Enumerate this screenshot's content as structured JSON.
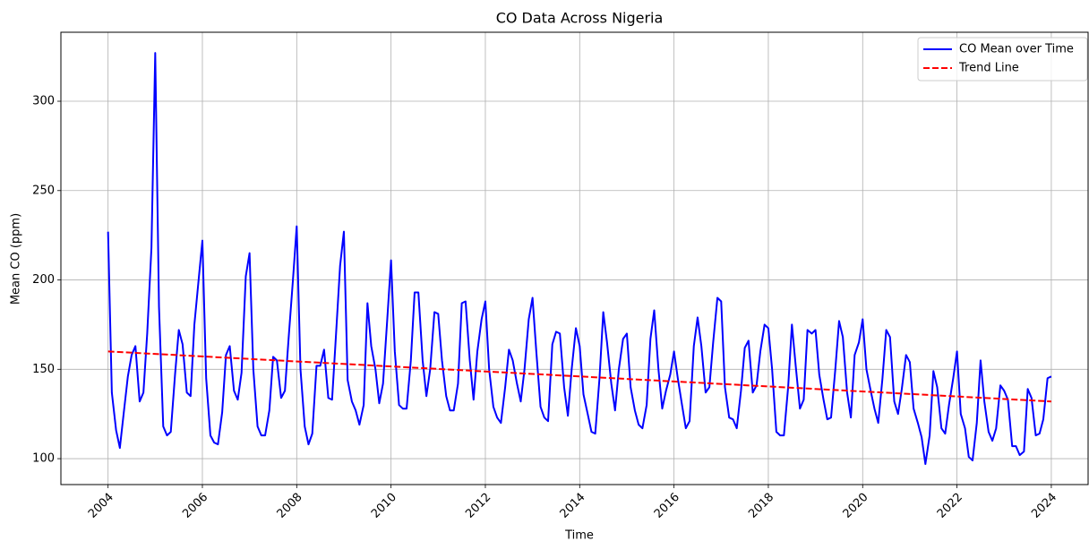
{
  "chart_data": {
    "type": "line",
    "title": "CO Data Across Nigeria",
    "x_label": "Time",
    "y_label": "Mean CO (ppm)",
    "xlim": [
      2003,
      2024.78
    ],
    "ylim": [
      85.5,
      338.6
    ],
    "xticks": [
      2004,
      2006,
      2008,
      2010,
      2012,
      2014,
      2016,
      2018,
      2020,
      2022,
      2024
    ],
    "yticks": [
      100,
      150,
      200,
      250,
      300
    ],
    "grid": true,
    "legend": "upper right",
    "series": [
      {
        "name": "CO Mean over Time",
        "color": "#0000ff",
        "linestyle": "solid",
        "x": [
          2004.0,
          2004.08,
          2004.17,
          2004.25,
          2004.33,
          2004.42,
          2004.5,
          2004.58,
          2004.67,
          2004.75,
          2004.83,
          2004.92,
          2005.0,
          2005.08,
          2005.17,
          2005.25,
          2005.33,
          2005.42,
          2005.5,
          2005.58,
          2005.67,
          2005.75,
          2005.83,
          2005.92,
          2006.0,
          2006.08,
          2006.17,
          2006.25,
          2006.33,
          2006.42,
          2006.5,
          2006.58,
          2006.67,
          2006.75,
          2006.83,
          2006.92,
          2007.0,
          2007.08,
          2007.17,
          2007.25,
          2007.33,
          2007.42,
          2007.5,
          2007.58,
          2007.67,
          2007.75,
          2007.83,
          2007.92,
          2008.0,
          2008.08,
          2008.17,
          2008.25,
          2008.33,
          2008.42,
          2008.5,
          2008.58,
          2008.67,
          2008.75,
          2008.83,
          2008.92,
          2009.0,
          2009.08,
          2009.17,
          2009.25,
          2009.33,
          2009.42,
          2009.5,
          2009.58,
          2009.67,
          2009.75,
          2009.83,
          2009.92,
          2010.0,
          2010.08,
          2010.17,
          2010.25,
          2010.33,
          2010.42,
          2010.5,
          2010.58,
          2010.67,
          2010.75,
          2010.83,
          2010.92,
          2011.0,
          2011.08,
          2011.17,
          2011.25,
          2011.33,
          2011.42,
          2011.5,
          2011.58,
          2011.67,
          2011.75,
          2011.83,
          2011.92,
          2012.0,
          2012.08,
          2012.17,
          2012.25,
          2012.33,
          2012.42,
          2012.5,
          2012.58,
          2012.67,
          2012.75,
          2012.83,
          2012.92,
          2013.0,
          2013.08,
          2013.17,
          2013.25,
          2013.33,
          2013.42,
          2013.5,
          2013.58,
          2013.67,
          2013.75,
          2013.83,
          2013.92,
          2014.0,
          2014.08,
          2014.17,
          2014.25,
          2014.33,
          2014.42,
          2014.5,
          2014.58,
          2014.67,
          2014.75,
          2014.83,
          2014.92,
          2015.0,
          2015.08,
          2015.17,
          2015.25,
          2015.33,
          2015.42,
          2015.5,
          2015.58,
          2015.67,
          2015.75,
          2015.83,
          2015.92,
          2016.0,
          2016.08,
          2016.17,
          2016.25,
          2016.33,
          2016.42,
          2016.5,
          2016.58,
          2016.67,
          2016.75,
          2016.83,
          2016.92,
          2017.0,
          2017.08,
          2017.17,
          2017.25,
          2017.33,
          2017.42,
          2017.5,
          2017.58,
          2017.67,
          2017.75,
          2017.83,
          2017.92,
          2018.0,
          2018.08,
          2018.17,
          2018.25,
          2018.33,
          2018.42,
          2018.5,
          2018.58,
          2018.67,
          2018.75,
          2018.83,
          2018.92,
          2019.0,
          2019.08,
          2019.17,
          2019.25,
          2019.33,
          2019.42,
          2019.5,
          2019.58,
          2019.67,
          2019.75,
          2019.83,
          2019.92,
          2020.0,
          2020.08,
          2020.17,
          2020.25,
          2020.33,
          2020.42,
          2020.5,
          2020.58,
          2020.67,
          2020.75,
          2020.83,
          2020.92,
          2021.0,
          2021.08,
          2021.17,
          2021.25,
          2021.33,
          2021.42,
          2021.5,
          2021.58,
          2021.67,
          2021.75,
          2021.83,
          2021.92,
          2022.0,
          2022.08,
          2022.17,
          2022.25,
          2022.33,
          2022.42,
          2022.5,
          2022.58,
          2022.67,
          2022.75,
          2022.83,
          2022.92,
          2023.0,
          2023.08,
          2023.17,
          2023.25,
          2023.33,
          2023.42,
          2023.5,
          2023.58,
          2023.67,
          2023.75,
          2023.83,
          2023.92,
          2024.0
        ],
        "values": [
          227,
          137,
          116,
          106,
          125,
          146,
          158,
          163,
          132,
          137,
          170,
          218,
          327,
          185,
          118,
          113,
          115,
          147,
          172,
          164,
          137,
          135,
          175,
          200,
          222,
          145,
          113,
          109,
          108,
          126,
          158,
          163,
          138,
          133,
          148,
          202,
          215,
          150,
          118,
          113,
          113,
          127,
          157,
          155,
          134,
          138,
          168,
          200,
          230,
          150,
          118,
          108,
          114,
          152,
          152,
          161,
          134,
          133,
          168,
          208,
          227,
          144,
          132,
          127,
          119,
          130,
          187,
          163,
          150,
          131,
          142,
          178,
          211,
          160,
          130,
          128,
          128,
          155,
          193,
          193,
          155,
          135,
          150,
          182,
          181,
          155,
          135,
          127,
          127,
          142,
          187,
          188,
          155,
          133,
          160,
          178,
          188,
          150,
          129,
          123,
          120,
          140,
          161,
          155,
          142,
          132,
          150,
          178,
          190,
          160,
          129,
          123,
          121,
          164,
          171,
          170,
          140,
          124,
          150,
          173,
          163,
          136,
          125,
          115,
          114,
          145,
          182,
          165,
          142,
          127,
          150,
          167,
          170,
          140,
          127,
          119,
          117,
          130,
          167,
          183,
          150,
          128,
          138,
          147,
          160,
          145,
          130,
          117,
          121,
          163,
          179,
          163,
          137,
          140,
          165,
          190,
          188,
          140,
          123,
          122,
          117,
          138,
          162,
          166,
          137,
          141,
          160,
          175,
          173,
          150,
          115,
          113,
          113,
          140,
          175,
          152,
          128,
          133,
          172,
          170,
          172,
          147,
          133,
          122,
          123,
          150,
          177,
          168,
          137,
          123,
          158,
          165,
          178,
          150,
          138,
          128,
          120,
          145,
          172,
          168,
          132,
          125,
          139,
          158,
          154,
          128,
          120,
          112,
          97,
          113,
          149,
          140,
          117,
          114,
          130,
          145,
          160,
          125,
          117,
          101,
          99,
          120,
          155,
          132,
          115,
          110,
          117,
          141,
          138,
          133,
          107,
          107,
          102,
          104,
          139,
          134,
          113,
          114,
          122,
          145,
          146
        ]
      },
      {
        "name": "Trend Line",
        "color": "#ff0000",
        "linestyle": "dashed",
        "x": [
          2004,
          2024
        ],
        "values": [
          160,
          132
        ]
      }
    ]
  }
}
